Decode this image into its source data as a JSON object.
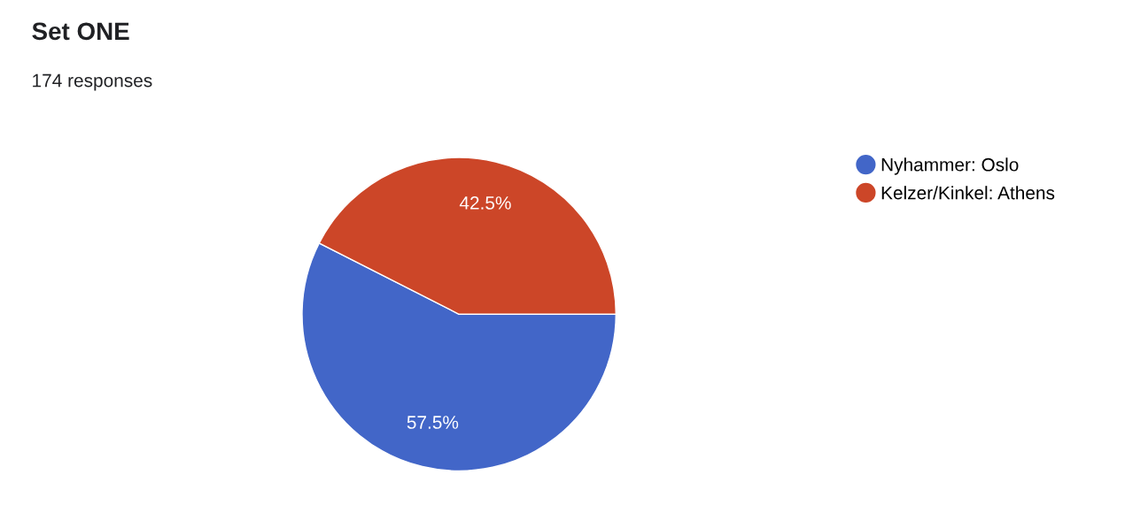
{
  "chart_data": {
    "type": "pie",
    "title": "Set ONE",
    "subtitle": "174 responses",
    "categories": [
      "Nyhammer: Oslo",
      "Kelzer/Kinkel: Athens"
    ],
    "values": [
      57.5,
      42.5
    ],
    "colors": [
      "#4266c8",
      "#cc4628"
    ],
    "value_labels": [
      "57.5%",
      "42.5%"
    ],
    "legend": "top right"
  }
}
